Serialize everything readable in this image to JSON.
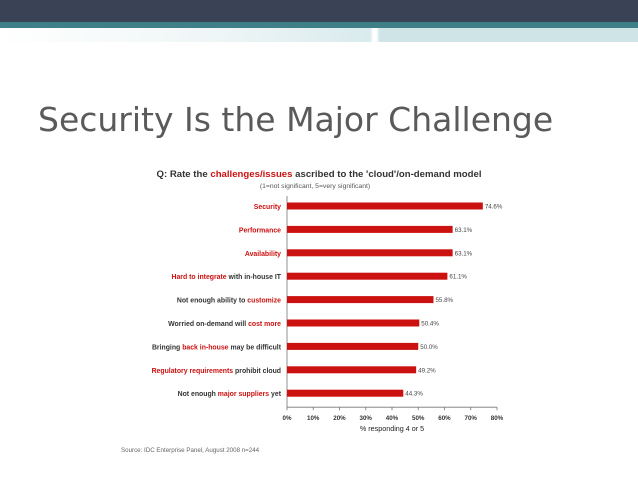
{
  "slide": {
    "title": "Security Is the Major Challenge"
  },
  "colors": {
    "header_dark": "#3a4255",
    "header_teal": "#3f7f88",
    "bar": "#cc1111",
    "highlight_text": "#cc1111",
    "text": "#333333"
  },
  "chart_data": {
    "type": "bar",
    "orientation": "horizontal",
    "question_prefix": "Q: Rate the ",
    "question_highlight": "challenges/issues",
    "question_suffix": " ascribed to the 'cloud'/on-demand model",
    "subtitle": "(1=not significant, 5=very significant)",
    "categories": [
      [
        {
          "t": "Security",
          "h": true
        }
      ],
      [
        {
          "t": "Performance",
          "h": true
        }
      ],
      [
        {
          "t": "Availability",
          "h": true
        }
      ],
      [
        {
          "t": "Hard to integrate",
          "h": true
        },
        {
          "t": " with in-house IT",
          "h": false
        }
      ],
      [
        {
          "t": "Not enough ability to ",
          "h": false
        },
        {
          "t": "customize",
          "h": true
        }
      ],
      [
        {
          "t": "Worried on-demand will ",
          "h": false
        },
        {
          "t": "cost more",
          "h": true
        }
      ],
      [
        {
          "t": "Bringing ",
          "h": false
        },
        {
          "t": "back in-house",
          "h": true
        },
        {
          "t": " may be difficult",
          "h": false
        }
      ],
      [
        {
          "t": "Regulatory requirements",
          "h": true
        },
        {
          "t": " prohibit cloud",
          "h": false
        }
      ],
      [
        {
          "t": "Not enough ",
          "h": false
        },
        {
          "t": "major suppliers",
          "h": true
        },
        {
          "t": " yet",
          "h": false
        }
      ]
    ],
    "values": [
      74.6,
      63.1,
      63.1,
      61.1,
      55.8,
      50.4,
      50.0,
      49.2,
      44.3
    ],
    "value_labels": [
      "74.6%",
      "63.1%",
      "63.1%",
      "61.1%",
      "55.8%",
      "50.4%",
      "50.0%",
      "49.2%",
      "44.3%"
    ],
    "xlim": [
      0,
      80
    ],
    "xticks": [
      "0%",
      "10%",
      "20%",
      "30%",
      "40%",
      "50%",
      "60%",
      "70%",
      "80%"
    ],
    "xlabel": "% responding 4 or 5",
    "source": "Source: IDC Enterprise Panel, August 2008  n=244"
  }
}
